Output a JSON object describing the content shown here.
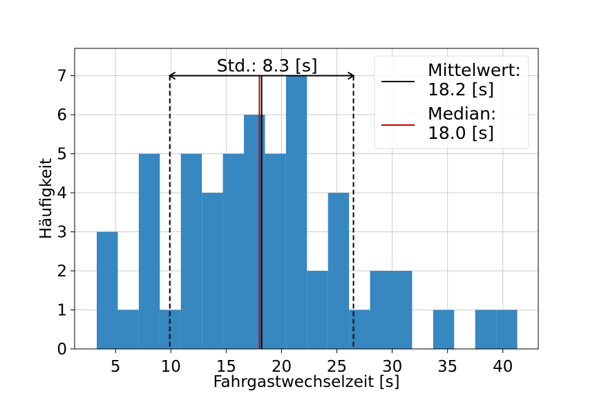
{
  "chart_data": {
    "type": "bar",
    "title": "",
    "xlabel": "Fahrgastwechselzeit [s]",
    "ylabel": "Häufigkeit",
    "xlim": [
      1.3,
      43.2
    ],
    "ylim": [
      0,
      7.7
    ],
    "xticks": [
      "5",
      "10",
      "15",
      "20",
      "25",
      "30",
      "35",
      "40"
    ],
    "yticks": [
      "0",
      "1",
      "2",
      "3",
      "4",
      "5",
      "6",
      "7"
    ],
    "grid": true,
    "bar_color": "#3787c0",
    "bin_width": 1.9,
    "bins": [
      {
        "left": 3.3,
        "value": 3
      },
      {
        "left": 5.2,
        "value": 1
      },
      {
        "left": 7.1,
        "value": 5
      },
      {
        "left": 9.0,
        "value": 1
      },
      {
        "left": 10.9,
        "value": 5
      },
      {
        "left": 12.8,
        "value": 4
      },
      {
        "left": 14.7,
        "value": 5
      },
      {
        "left": 16.6,
        "value": 6
      },
      {
        "left": 18.5,
        "value": 5
      },
      {
        "left": 20.4,
        "value": 7
      },
      {
        "left": 22.3,
        "value": 2
      },
      {
        "left": 24.2,
        "value": 4
      },
      {
        "left": 26.1,
        "value": 1
      },
      {
        "left": 28.0,
        "value": 2
      },
      {
        "left": 29.9,
        "value": 2
      },
      {
        "left": 31.8,
        "value": 0
      },
      {
        "left": 33.7,
        "value": 1
      },
      {
        "left": 35.6,
        "value": 0
      },
      {
        "left": 37.5,
        "value": 1
      },
      {
        "left": 39.4,
        "value": 1
      }
    ],
    "mean": 18.2,
    "median": 18.0,
    "std": 8.3,
    "std_label": "Std.: 8.3 [s]",
    "std_range": [
      9.9,
      26.5
    ],
    "mean_color": "#000000",
    "median_color": "#cc0000",
    "legend": {
      "placement": "top-right",
      "entries": [
        {
          "line1": "Mittelwert:",
          "line2": "18.2 [s]",
          "color": "#000000"
        },
        {
          "line1": "Median:",
          "line2": "18.0 [s]",
          "color": "#cc0000"
        }
      ]
    }
  }
}
